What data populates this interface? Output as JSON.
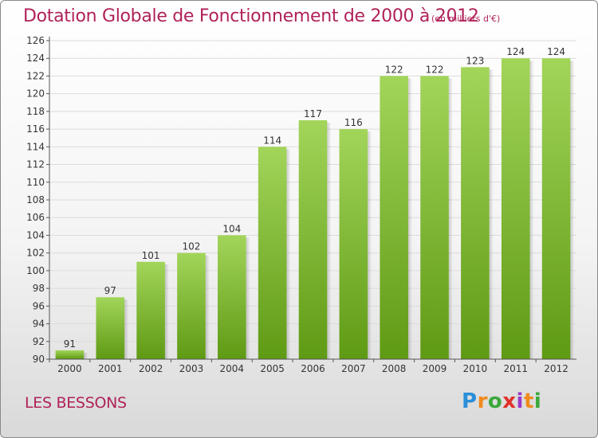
{
  "header": {
    "title": "Dotation Globale de Fonctionnement de 2000 à 2012",
    "unit": "(en milliers d'€)"
  },
  "commune": "LES BESSONS",
  "logo": "Proxiti",
  "colors": {
    "title": "#b0225a",
    "bar_top": "#a2d55a",
    "bar_bottom": "#5f9a14",
    "grid": "#dcdcdc"
  },
  "chart_data": {
    "type": "bar",
    "categories": [
      "2000",
      "2001",
      "2002",
      "2003",
      "2004",
      "2005",
      "2006",
      "2007",
      "2008",
      "2009",
      "2010",
      "2011",
      "2012"
    ],
    "values": [
      91,
      97,
      101,
      102,
      104,
      114,
      117,
      116,
      122,
      122,
      123,
      124,
      124
    ],
    "title": "Dotation Globale de Fonctionnement de 2000 à 2012",
    "subtitle": "(en milliers d'€)",
    "ylim": [
      90,
      126
    ],
    "yticks": [
      90,
      92,
      94,
      96,
      98,
      100,
      102,
      104,
      106,
      108,
      110,
      112,
      114,
      116,
      118,
      120,
      122,
      124,
      126
    ],
    "grid": true,
    "data_labels": true
  }
}
